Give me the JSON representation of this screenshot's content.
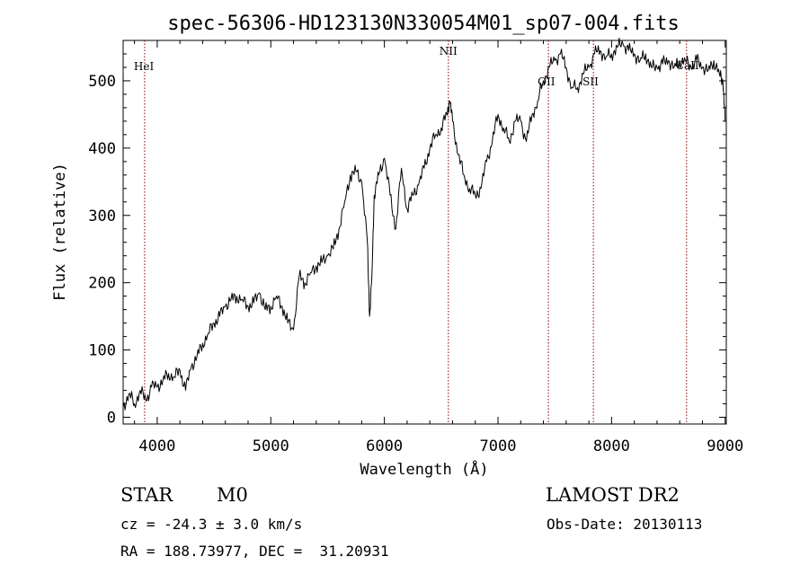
{
  "chart_data": {
    "type": "line",
    "title": "spec-56306-HD123130N330054M01_sp07-004.fits",
    "xlabel": "Wavelength (Å)",
    "ylabel": "Flux (relative)",
    "xlim": [
      3700,
      9010
    ],
    "ylim": [
      -10,
      560
    ],
    "x_ticks": [
      4000,
      5000,
      6000,
      7000,
      8000,
      9000
    ],
    "y_ticks": [
      0,
      100,
      200,
      300,
      400,
      500
    ],
    "grid": false,
    "series": [
      {
        "line_color": "#000000",
        "x": [
          3700,
          3750,
          3800,
          3850,
          3900,
          3950,
          4000,
          4050,
          4100,
          4150,
          4200,
          4250,
          4300,
          4350,
          4400,
          4450,
          4500,
          4550,
          4600,
          4650,
          4700,
          4750,
          4800,
          4850,
          4900,
          4950,
          5000,
          5050,
          5100,
          5150,
          5200,
          5250,
          5300,
          5350,
          5400,
          5450,
          5500,
          5550,
          5600,
          5650,
          5700,
          5750,
          5800,
          5850,
          5870,
          5890,
          5910,
          5950,
          6000,
          6050,
          6100,
          6150,
          6200,
          6250,
          6300,
          6350,
          6400,
          6450,
          6500,
          6550,
          6575,
          6600,
          6650,
          6700,
          6750,
          6800,
          6850,
          6900,
          6950,
          7000,
          7050,
          7100,
          7150,
          7200,
          7250,
          7300,
          7350,
          7400,
          7450,
          7500,
          7550,
          7600,
          7650,
          7700,
          7750,
          7800,
          7850,
          7900,
          7950,
          8000,
          8050,
          8100,
          8150,
          8200,
          8250,
          8300,
          8350,
          8400,
          8450,
          8500,
          8550,
          8600,
          8650,
          8700,
          8750,
          8800,
          8850,
          8900,
          8950,
          8980,
          9000
        ],
        "y": [
          15,
          35,
          20,
          40,
          25,
          45,
          45,
          55,
          65,
          60,
          70,
          40,
          75,
          90,
          110,
          125,
          140,
          150,
          165,
          175,
          180,
          175,
          165,
          170,
          185,
          160,
          165,
          180,
          165,
          140,
          130,
          210,
          200,
          215,
          225,
          230,
          240,
          250,
          280,
          320,
          360,
          365,
          350,
          260,
          150,
          210,
          330,
          360,
          385,
          330,
          280,
          370,
          310,
          330,
          345,
          370,
          400,
          420,
          430,
          450,
          470,
          440,
          390,
          360,
          340,
          330,
          340,
          380,
          410,
          450,
          430,
          410,
          440,
          440,
          410,
          450,
          470,
          500,
          520,
          530,
          540,
          520,
          490,
          490,
          510,
          520,
          540,
          545,
          535,
          540,
          550,
          555,
          545,
          540,
          530,
          540,
          520,
          520,
          525,
          530,
          520,
          530,
          530,
          520,
          530,
          520,
          515,
          530,
          510,
          500,
          440
        ]
      }
    ],
    "line_markers": [
      {
        "x": 3889,
        "label": "HeI"
      },
      {
        "x": 6563,
        "label": "NII"
      },
      {
        "x": 7444,
        "label": "OII"
      },
      {
        "x": 7840,
        "label": "SII"
      },
      {
        "x": 8660,
        "label": "CaII"
      }
    ],
    "marker_color": "#8b0000"
  },
  "info": {
    "class": "STAR",
    "subclass": "M0",
    "survey": "LAMOST DR2",
    "cz": "cz = -24.3 ± 3.0 km/s",
    "obs_date": "Obs-Date: 20130113",
    "coords": "RA = 188.73977, DEC =  31.20931"
  }
}
